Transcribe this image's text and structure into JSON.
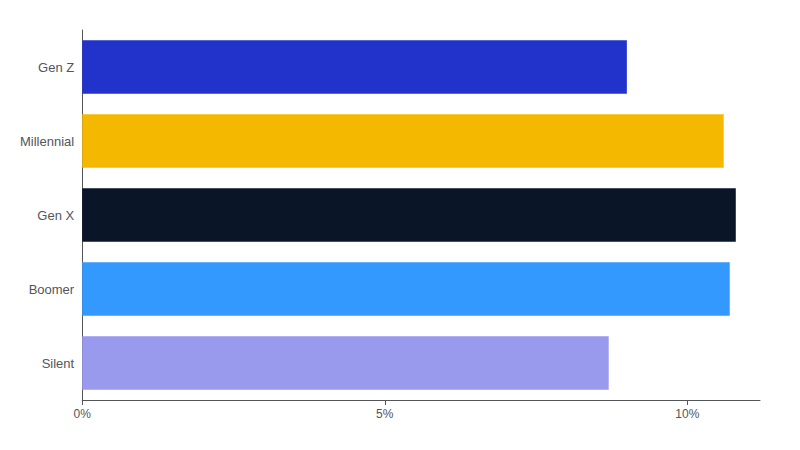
{
  "chart_data": {
    "type": "bar",
    "orientation": "horizontal",
    "categories": [
      "Gen Z",
      "Millennial",
      "Gen X",
      "Boomer",
      "Silent"
    ],
    "values": [
      9.0,
      10.6,
      10.8,
      10.7,
      8.7
    ],
    "colors": [
      "#2233CC",
      "#F5B800",
      "#0A1628",
      "#3399FF",
      "#9999EE"
    ],
    "xlim": [
      0,
      11.2
    ],
    "xticks": [
      {
        "value": 0,
        "label": "0%"
      },
      {
        "value": 5,
        "label": "5%"
      },
      {
        "value": 10,
        "label": "10%"
      }
    ],
    "grid": false
  }
}
